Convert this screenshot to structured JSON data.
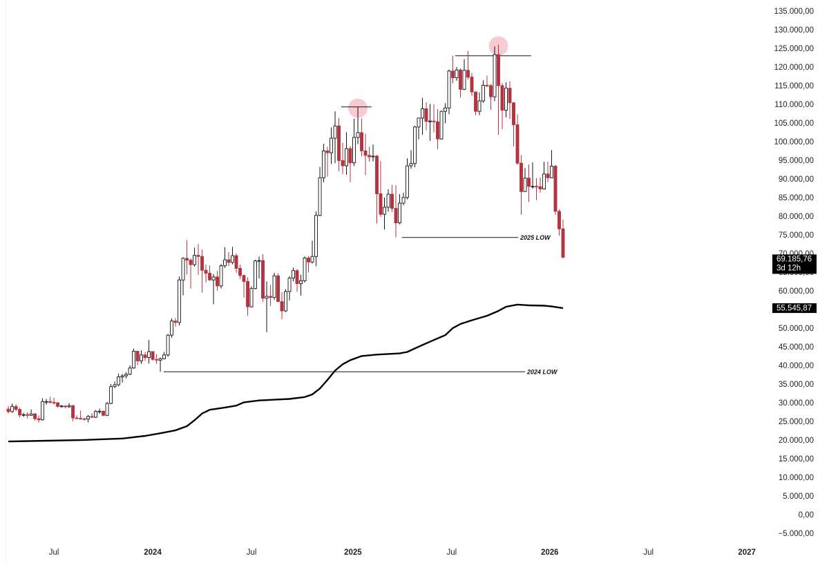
{
  "chart_data": {
    "type": "candlestick",
    "up_color": "#ffffff",
    "up_stroke": "#111111",
    "down_color": "#b5323f",
    "xlim": [
      -2.2,
      197.1
    ],
    "ylim": [
      -5000,
      135000
    ],
    "xticks": [
      {
        "value": 12,
        "label": "Jul"
      },
      {
        "value": 38,
        "label": "2024"
      },
      {
        "value": 64,
        "label": "Jul"
      },
      {
        "value": 90.7,
        "label": "2025"
      },
      {
        "value": 116.7,
        "label": "Jul"
      },
      {
        "value": 142.5,
        "label": "2026"
      },
      {
        "value": 168.5,
        "label": "Jul"
      },
      {
        "value": 194.4,
        "label": "2027"
      }
    ],
    "yticks": [
      {
        "value": 135000,
        "label": "135.000,00"
      },
      {
        "value": 130000,
        "label": "130.000,00"
      },
      {
        "value": 125000,
        "label": "125.000,00"
      },
      {
        "value": 120000,
        "label": "120.000,00"
      },
      {
        "value": 115000,
        "label": "115.000,00"
      },
      {
        "value": 110000,
        "label": "110.000,00"
      },
      {
        "value": 105000,
        "label": "105.000,00"
      },
      {
        "value": 100000,
        "label": "100.000,00"
      },
      {
        "value": 95000,
        "label": "95.000,00"
      },
      {
        "value": 90000,
        "label": "90.000,00"
      },
      {
        "value": 85000,
        "label": "85.000,00"
      },
      {
        "value": 80000,
        "label": "80.000,00"
      },
      {
        "value": 75000,
        "label": "75.000,00"
      },
      {
        "value": 70000,
        "label": "70.000,00"
      },
      {
        "value": 65000,
        "label": "65.000,00"
      },
      {
        "value": 60000,
        "label": "60.000,00"
      },
      {
        "value": 55000,
        "label": "55.000,00"
      },
      {
        "value": 50000,
        "label": "50.000,00"
      },
      {
        "value": 45000,
        "label": "45.000,00"
      },
      {
        "value": 40000,
        "label": "40.000,00"
      },
      {
        "value": 35000,
        "label": "35.000,00"
      },
      {
        "value": 30000,
        "label": "30.000,00"
      },
      {
        "value": 25000,
        "label": "25.000,00"
      },
      {
        "value": 20000,
        "label": "20.000,00"
      },
      {
        "value": 15000,
        "label": "15.000,00"
      },
      {
        "value": 10000,
        "label": "10.000,00"
      },
      {
        "value": 5000,
        "label": "5.000,00"
      },
      {
        "value": 0,
        "label": "0,00"
      },
      {
        "value": -5000,
        "label": "−5.000,00"
      }
    ],
    "open": [
      28500,
      27800,
      29200,
      28400,
      26900,
      27000,
      26800,
      27200,
      25900,
      25600,
      30500,
      30500,
      30300,
      30200,
      29200,
      29300,
      29100,
      29400,
      26100,
      26000,
      25900,
      25800,
      26500,
      26300,
      27900,
      27900,
      26800,
      30000,
      34500,
      35000,
      37100,
      37400,
      37800,
      39500,
      44000,
      41400,
      43000,
      42300,
      43900,
      41800,
      41600,
      42000,
      43000,
      48300,
      52100,
      51700,
      63100,
      68900,
      68400,
      67200,
      69700,
      69400,
      65700,
      64900,
      63100,
      63900,
      61500,
      66900,
      68500,
      67800,
      69600,
      66200,
      64300,
      62700,
      55900,
      60800,
      68200,
      68300,
      58200,
      58700,
      58400,
      64200,
      57300,
      54800,
      60000,
      63600,
      65600,
      62100,
      62900,
      69000,
      67900,
      69400,
      80400,
      90500,
      97700,
      97200,
      101100,
      104400,
      95100,
      93700,
      98300,
      94500,
      101300,
      102600,
      97700,
      96500,
      96100,
      96300,
      86200,
      80700,
      82600,
      86100,
      82300,
      78400,
      83700,
      85200,
      93700,
      94300,
      104100,
      106500,
      109000,
      105600,
      105700,
      105500,
      100900,
      108300,
      109200,
      119100,
      117300,
      119400,
      114200,
      119300,
      117500,
      113500,
      108300,
      111100,
      115300,
      115200,
      112200,
      123500,
      115200,
      108600,
      114500,
      110600,
      104700,
      94400,
      86800,
      90400,
      88200,
      88200,
      88100,
      87500,
      91500,
      90500,
      93600,
      81500,
      76800
    ],
    "high": [
      29300,
      30000,
      29800,
      28900,
      27500,
      27600,
      28400,
      27400,
      26800,
      31400,
      31200,
      31800,
      31500,
      30300,
      29600,
      29500,
      30100,
      29600,
      26800,
      28100,
      26100,
      26900,
      27400,
      28200,
      28600,
      28100,
      30400,
      35200,
      35900,
      38000,
      37900,
      38400,
      40200,
      44700,
      43400,
      44200,
      43800,
      47000,
      43500,
      43200,
      42300,
      43800,
      48600,
      52800,
      52900,
      64000,
      69200,
      73800,
      68900,
      71800,
      72700,
      71300,
      67200,
      67000,
      64700,
      65500,
      67400,
      71900,
      70600,
      72000,
      70200,
      67200,
      64500,
      63800,
      61400,
      68500,
      69400,
      70000,
      62700,
      61800,
      65000,
      64900,
      59800,
      60600,
      64100,
      66400,
      66000,
      64500,
      69400,
      69500,
      73600,
      81500,
      93400,
      99600,
      98800,
      104000,
      108300,
      106500,
      99900,
      102700,
      99000,
      106300,
      109500,
      106400,
      102300,
      98800,
      99400,
      96600,
      95000,
      85200,
      87400,
      88600,
      88500,
      86100,
      86500,
      95700,
      97900,
      104400,
      106600,
      111900,
      110700,
      110300,
      110200,
      108900,
      108500,
      110500,
      119500,
      123200,
      120200,
      119800,
      122300,
      124500,
      118600,
      113600,
      113400,
      116600,
      117900,
      115600,
      125700,
      126200,
      115900,
      116100,
      116400,
      110700,
      107500,
      96600,
      93100,
      94100,
      94600,
      90400,
      90600,
      94800,
      94800,
      97900,
      94000,
      82000,
      79300
    ],
    "low": [
      27300,
      27500,
      27900,
      26200,
      26400,
      26000,
      26700,
      25400,
      24900,
      25400,
      29600,
      29900,
      29700,
      28900,
      28900,
      28700,
      28800,
      25200,
      25800,
      25700,
      25400,
      24900,
      26100,
      26100,
      27200,
      26600,
      26600,
      29800,
      34100,
      34600,
      35600,
      36700,
      37600,
      39300,
      40200,
      40600,
      41400,
      40700,
      41400,
      40600,
      38500,
      41800,
      42500,
      47600,
      50600,
      50900,
      59000,
      64600,
      60800,
      66700,
      64500,
      59700,
      62400,
      62900,
      56600,
      60200,
      60800,
      66300,
      66800,
      67300,
      65000,
      63400,
      58400,
      53500,
      55700,
      60600,
      63500,
      57200,
      49100,
      56100,
      57800,
      57200,
      52600,
      54500,
      57600,
      62700,
      59900,
      58900,
      62400,
      65100,
      67500,
      66800,
      80200,
      89300,
      90800,
      94200,
      94400,
      92200,
      91500,
      91300,
      89300,
      93600,
      99500,
      96200,
      91200,
      94800,
      94900,
      78200,
      80000,
      76600,
      81400,
      81300,
      74500,
      78000,
      83100,
      84700,
      92900,
      93300,
      100800,
      102000,
      103200,
      100400,
      102700,
      98200,
      100700,
      105100,
      107500,
      115800,
      116500,
      112000,
      114000,
      116800,
      112400,
      107300,
      107300,
      110600,
      114800,
      108700,
      111000,
      102000,
      103500,
      106700,
      106300,
      98900,
      94000,
      80600,
      86700,
      84000,
      87600,
      84500,
      86500,
      87300,
      89300,
      90400,
      80600,
      75000,
      68900
    ],
    "close": [
      27800,
      29200,
      28400,
      26900,
      27000,
      26800,
      27200,
      25900,
      25600,
      30500,
      30500,
      30300,
      30200,
      29200,
      29300,
      29100,
      29400,
      26100,
      26000,
      25900,
      25800,
      26500,
      26300,
      27900,
      27900,
      26800,
      30000,
      34500,
      35000,
      37100,
      37400,
      37800,
      39500,
      44000,
      41400,
      43000,
      42300,
      43900,
      41800,
      41600,
      42000,
      43000,
      48300,
      52100,
      51700,
      63100,
      68900,
      68400,
      67200,
      69700,
      69400,
      65700,
      64900,
      63100,
      63900,
      61500,
      66900,
      68500,
      67800,
      69600,
      66200,
      64300,
      62700,
      55900,
      60800,
      68200,
      68300,
      58200,
      58700,
      58400,
      64200,
      57300,
      54800,
      60000,
      63600,
      65600,
      62100,
      62900,
      69000,
      67900,
      69400,
      80400,
      90500,
      97700,
      97200,
      101100,
      104400,
      95100,
      93700,
      98300,
      94500,
      101300,
      102600,
      97700,
      96500,
      96100,
      96300,
      86200,
      80700,
      82600,
      86100,
      82300,
      78400,
      83700,
      85200,
      93700,
      94300,
      104100,
      106500,
      109000,
      105600,
      105700,
      105500,
      100900,
      108300,
      109200,
      119100,
      117300,
      119400,
      114200,
      119300,
      117500,
      113500,
      108300,
      111100,
      115300,
      115200,
      112200,
      123500,
      115200,
      108600,
      114500,
      110600,
      104700,
      94400,
      86800,
      90400,
      88200,
      88200,
      88100,
      87500,
      91500,
      90500,
      93600,
      81500,
      76800,
      69185.76
    ],
    "ma": {
      "color": "#000000",
      "x": [
        0,
        10,
        20,
        30,
        36,
        40,
        44,
        47,
        49,
        51,
        53,
        57,
        60,
        62,
        66,
        70,
        74,
        78,
        80,
        82,
        84,
        86,
        88,
        90,
        93,
        97,
        103,
        105,
        108,
        112,
        115,
        117,
        119,
        122,
        126,
        129,
        131,
        134,
        137,
        141,
        143,
        146
      ],
      "values": [
        19800,
        20000,
        20200,
        20600,
        21300,
        22000,
        22800,
        23900,
        25500,
        27300,
        28300,
        28900,
        29400,
        30300,
        30800,
        31000,
        31200,
        31700,
        32400,
        34000,
        36300,
        38800,
        40500,
        41600,
        42700,
        43100,
        43400,
        43800,
        45200,
        47000,
        48300,
        50200,
        51300,
        52300,
        53500,
        54800,
        55900,
        56500,
        56300,
        56200,
        56000,
        55545.87
      ],
      "last_label": "55.545,87"
    },
    "last_price": {
      "value": 69185.76,
      "label": "69.185,76",
      "countdown": "3d 12h"
    },
    "highlights": [
      92,
      129
    ],
    "highlight_color": "#f4c3ca",
    "levels": [
      {
        "value": 109500,
        "x": [
          87.6,
          95.6
        ]
      },
      {
        "value": 123200,
        "x": [
          117.6,
          137.6
        ]
      },
      {
        "value": 74500,
        "x": [
          103.6,
          134.2
        ],
        "label": "2025 LOW"
      },
      {
        "value": 38500,
        "x": [
          40.9,
          136
        ],
        "label": "2024 LOW"
      }
    ]
  }
}
